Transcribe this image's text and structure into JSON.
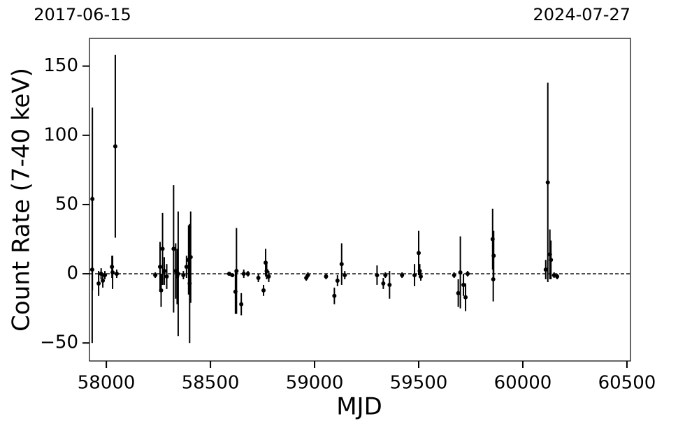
{
  "chart_data": {
    "type": "errorbar",
    "xlabel": "MJD",
    "ylabel": "Count Rate (7-40 keV)",
    "color": "#000000",
    "x": [
      57933,
      57932,
      57963,
      57975,
      57983,
      57993,
      58027,
      58030,
      58043,
      58050,
      58235,
      58258,
      58263,
      58270,
      58278,
      58290,
      58323,
      58333,
      58340,
      58345,
      58370,
      58385,
      58395,
      58400,
      58405,
      58590,
      58605,
      58620,
      58625,
      58648,
      58660,
      58680,
      58730,
      58755,
      58765,
      58770,
      58780,
      58960,
      58968,
      59055,
      59095,
      59110,
      59130,
      59145,
      59300,
      59330,
      59340,
      59360,
      59420,
      59480,
      59500,
      59505,
      59510,
      59670,
      59690,
      59700,
      59715,
      59725,
      59735,
      59855,
      59860,
      59858,
      60110,
      60120,
      60130,
      60135,
      60150,
      60165
    ],
    "values": [
      54,
      3,
      -7,
      0,
      -5,
      -1,
      5,
      1,
      92,
      0,
      -1,
      5,
      -12,
      18,
      2,
      -2,
      18,
      2,
      -2,
      0,
      -1,
      5,
      10,
      -7,
      12,
      0,
      -1,
      -13,
      2,
      -22,
      0,
      0,
      -3,
      -12,
      8,
      2,
      -2,
      -3,
      -1,
      -2,
      -16,
      -5,
      7,
      -1,
      -1,
      -7,
      -1,
      -8,
      -1,
      -1,
      15,
      2,
      -2,
      -1,
      -14,
      1,
      -8,
      -17,
      0,
      25,
      13,
      -4,
      3,
      66,
      14,
      10,
      -1,
      -2
    ],
    "errors": [
      66,
      53,
      9,
      4,
      5,
      3,
      8,
      12,
      66,
      3,
      2,
      18,
      12,
      26,
      10,
      9,
      46,
      20,
      20,
      45,
      3,
      8,
      25,
      43,
      33,
      1,
      1,
      16,
      31,
      8,
      3,
      2,
      3,
      4,
      10,
      6,
      4,
      2,
      2,
      2,
      6,
      4,
      15,
      3,
      7,
      4,
      2,
      10,
      2,
      8,
      16,
      5,
      3,
      2,
      10,
      26,
      8,
      10,
      2,
      22,
      18,
      16,
      7,
      72,
      18,
      14,
      2,
      2
    ],
    "hline": 0,
    "xlim": [
      57919,
      60517
    ],
    "ylim": [
      -63,
      170
    ],
    "xticks": [
      58000,
      58500,
      59000,
      59500,
      60000,
      60500
    ],
    "yticks": [
      {
        "value": -50,
        "label": "−50"
      },
      0,
      50,
      100,
      150
    ],
    "x2ticks": [
      {
        "value": 57919,
        "label": "2017-06-15"
      },
      {
        "value": 60517,
        "label": "2024-07-27"
      }
    ]
  }
}
